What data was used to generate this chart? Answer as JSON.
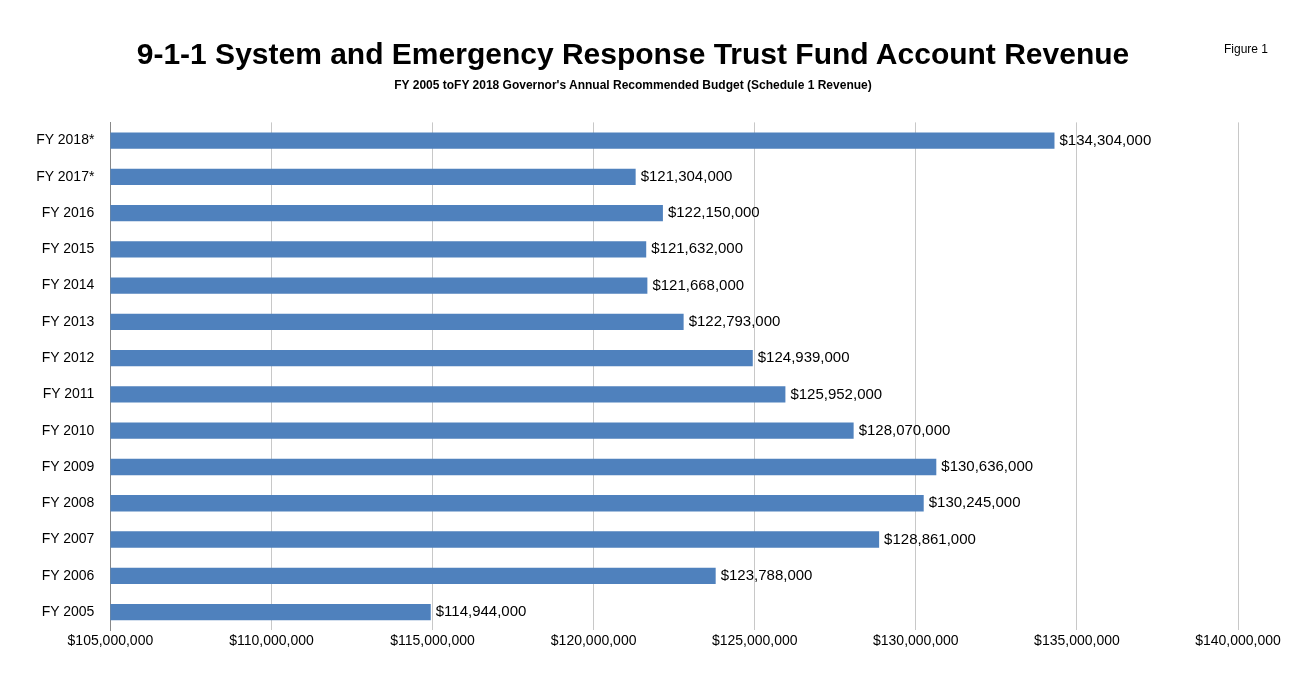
{
  "chart_data": {
    "type": "bar",
    "orientation": "horizontal",
    "title": "9-1-1 System and Emergency Response Trust Fund Account Revenue",
    "subtitle": "FY 2005 toFY 2018 Governor's Annual Recommended Budget (Schedule 1 Revenue)",
    "annotations": [
      "Figure 1"
    ],
    "categories": [
      "FY 2018*",
      "FY 2017*",
      "FY 2016",
      "FY 2015",
      "FY 2014",
      "FY 2013",
      "FY 2012",
      "FY 2011",
      "FY 2010",
      "FY 2009",
      "FY 2008",
      "FY 2007",
      "FY 2006",
      "FY 2005"
    ],
    "values": [
      134304000,
      121304000,
      122150000,
      121632000,
      121668000,
      122793000,
      124939000,
      125952000,
      128070000,
      130636000,
      130245000,
      128861000,
      123788000,
      114944000
    ],
    "value_labels": [
      "$134,304,000",
      "$121,304,000",
      "$122,150,000",
      "$121,632,000",
      "$121,668,000",
      "$122,793,000",
      "$124,939,000",
      "$125,952,000",
      "$128,070,000",
      "$130,636,000",
      "$130,245,000",
      "$128,861,000",
      "$123,788,000",
      "$114,944,000"
    ],
    "color": "#4f81bd",
    "xlim": [
      105000000,
      140000000
    ],
    "xticks": [
      {
        "value": 105000000,
        "label": "$105,000,000"
      },
      {
        "value": 110000000,
        "label": "$110,000,000"
      },
      {
        "value": 115000000,
        "label": "$115,000,000"
      },
      {
        "value": 120000000,
        "label": "$120,000,000"
      },
      {
        "value": 125000000,
        "label": "$125,000,000"
      },
      {
        "value": 130000000,
        "label": "$130,000,000"
      },
      {
        "value": 135000000,
        "label": "$135,000,000"
      },
      {
        "value": 140000000,
        "label": "$140,000,000"
      }
    ],
    "grid": "x",
    "legend": false
  }
}
